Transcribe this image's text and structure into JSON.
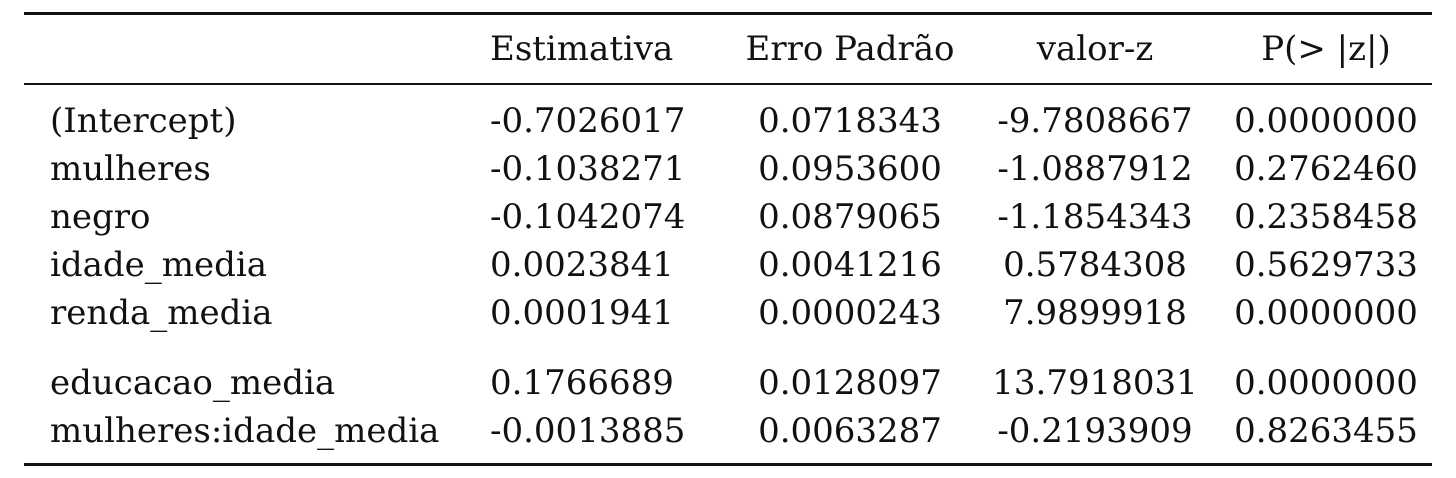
{
  "table": {
    "headers": [
      "",
      "Estimativa",
      "Erro Padrão",
      "valor-z",
      "P(> |z|)"
    ],
    "rows": [
      [
        "(Intercept)",
        "-0.7026017",
        "0.0718343",
        "-9.7808667",
        "0.0000000"
      ],
      [
        "mulheres",
        "-0.1038271",
        "0.0953600",
        "-1.0887912",
        "0.2762460"
      ],
      [
        "negro",
        "-0.1042074",
        "0.0879065",
        "-1.1854343",
        "0.2358458"
      ],
      [
        "idade_media",
        "0.0023841",
        "0.0041216",
        "0.5784308",
        "0.5629733"
      ],
      [
        "renda_media",
        "0.0001941",
        "0.0000243",
        "7.9899918",
        "0.0000000"
      ],
      [
        "educacao_media",
        "0.1766689",
        "0.0128097",
        "13.7918031",
        "0.0000000"
      ],
      [
        "mulheres:idade_media",
        "-0.0013885",
        "0.0063287",
        "-0.2193909",
        "0.8263455"
      ]
    ]
  }
}
